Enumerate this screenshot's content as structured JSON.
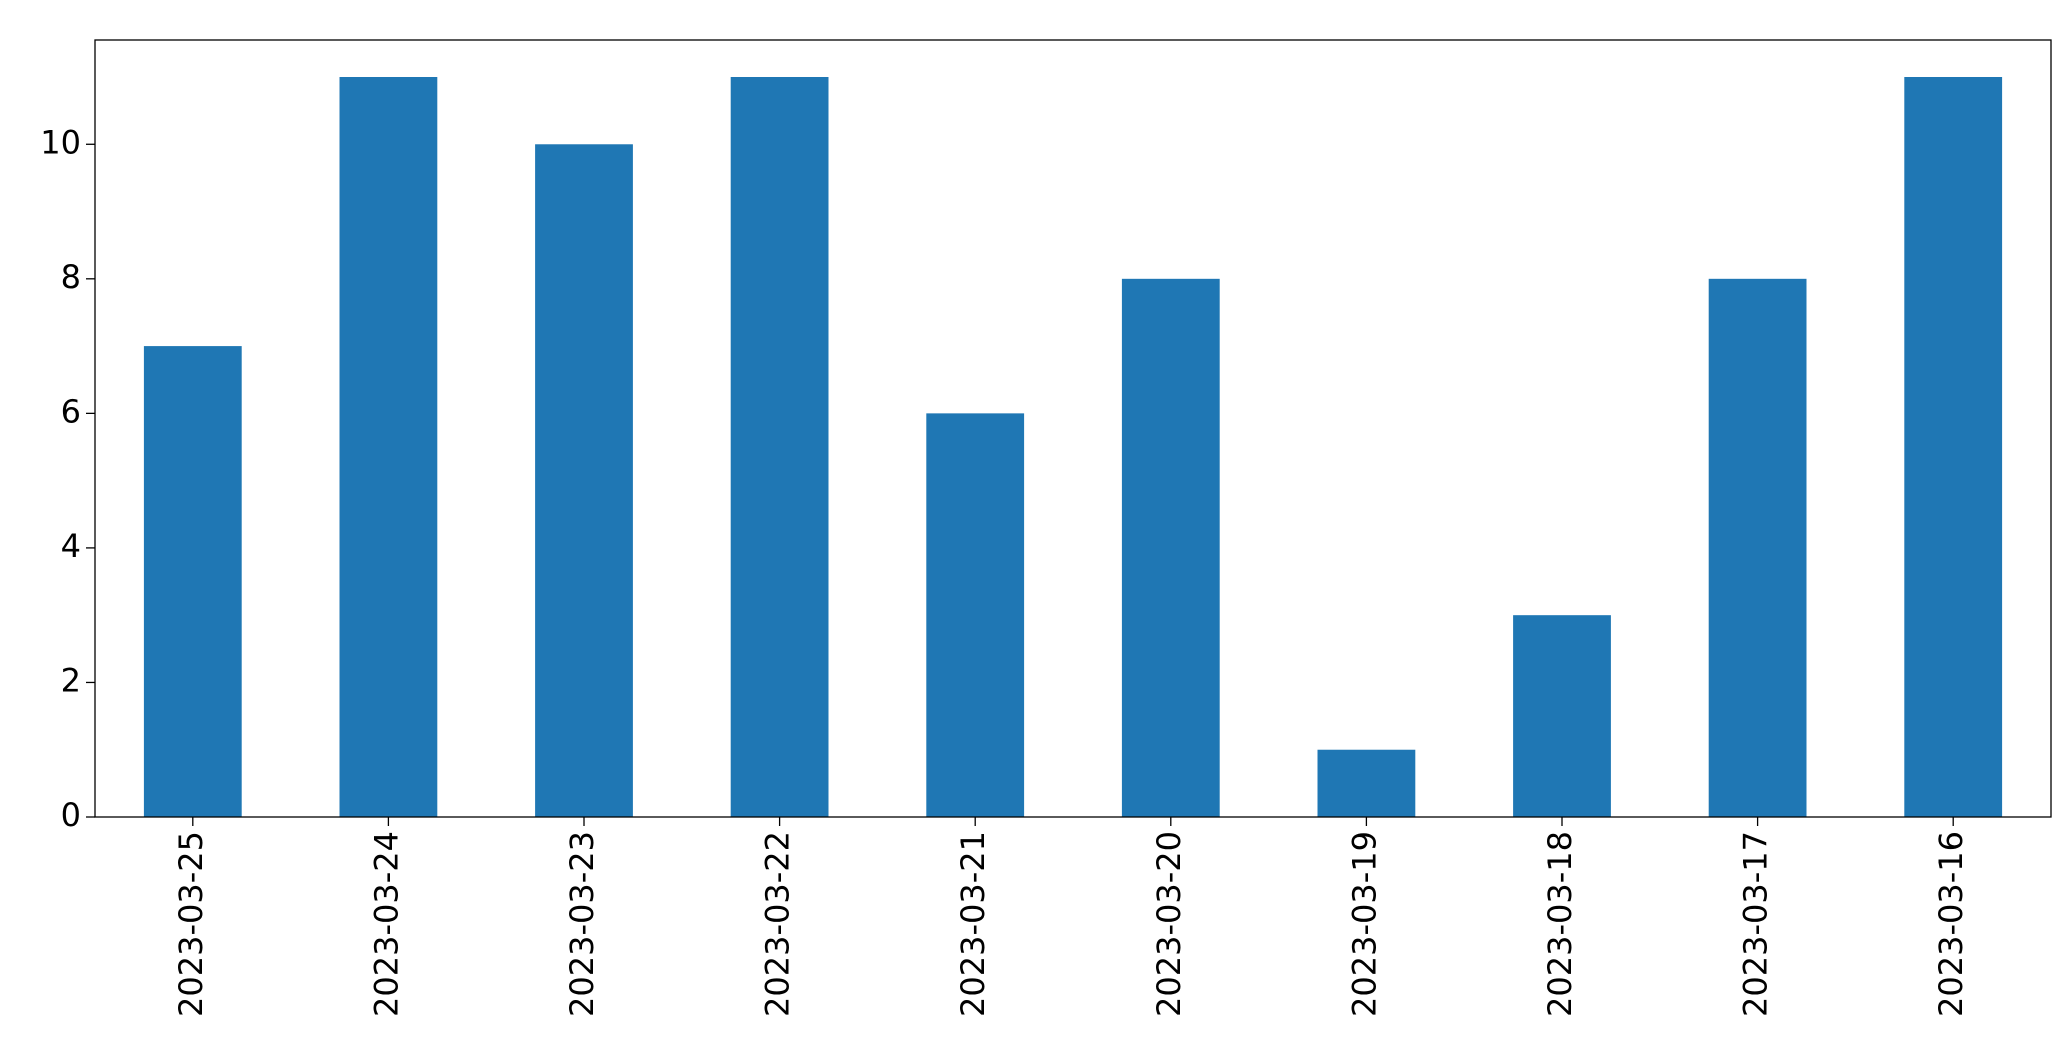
{
  "chart_data": {
    "type": "bar",
    "categories": [
      "2023-03-25",
      "2023-03-24",
      "2023-03-23",
      "2023-03-22",
      "2023-03-21",
      "2023-03-20",
      "2023-03-19",
      "2023-03-18",
      "2023-03-17",
      "2023-03-16"
    ],
    "values": [
      7,
      11,
      10,
      11,
      6,
      8,
      1,
      3,
      8,
      11
    ],
    "color": "#1f77b4",
    "ylim": [
      0,
      11.55
    ],
    "yticks": [
      0,
      2,
      4,
      6,
      8,
      10
    ],
    "grid": false
  }
}
